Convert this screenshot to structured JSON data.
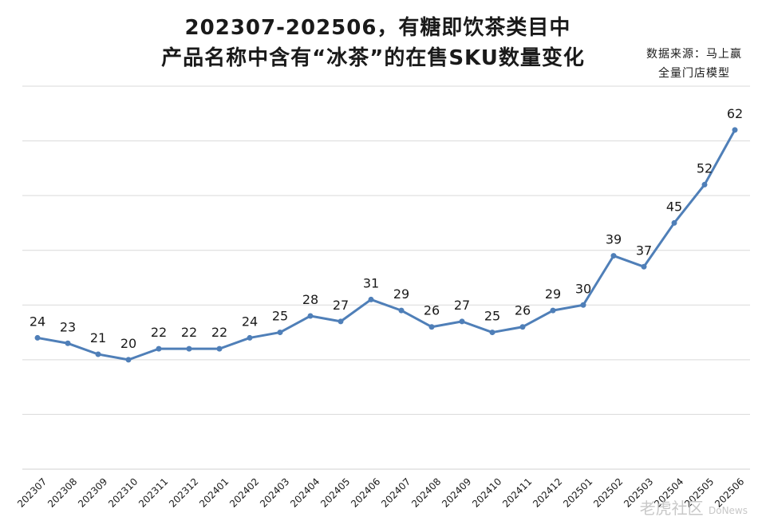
{
  "chart_data": {
    "type": "line",
    "title_line1": "202307-202506，有糖即饮茶类目中",
    "title_line2": "产品名称中含有“冰茶”的在售SKU数量变化",
    "source_line1": "数据来源：马上赢",
    "source_line2": "全量门店模型",
    "categories": [
      "202307",
      "202308",
      "202309",
      "202310",
      "202311",
      "202312",
      "202401",
      "202402",
      "202403",
      "202404",
      "202405",
      "202406",
      "202407",
      "202408",
      "202409",
      "202410",
      "202411",
      "202412",
      "202501",
      "202502",
      "202503",
      "202504",
      "202505",
      "202506"
    ],
    "values": [
      24,
      23,
      21,
      20,
      22,
      22,
      22,
      24,
      25,
      28,
      27,
      31,
      29,
      26,
      27,
      25,
      26,
      29,
      30,
      39,
      37,
      45,
      52,
      62
    ],
    "ylim": [
      0,
      70
    ],
    "ytick_step": 10,
    "grid": true,
    "line_color": "#4f7fb8",
    "grid_color": "#d9d9d9"
  },
  "watermark": "老虎社区",
  "watermark_sub": "DoNews"
}
